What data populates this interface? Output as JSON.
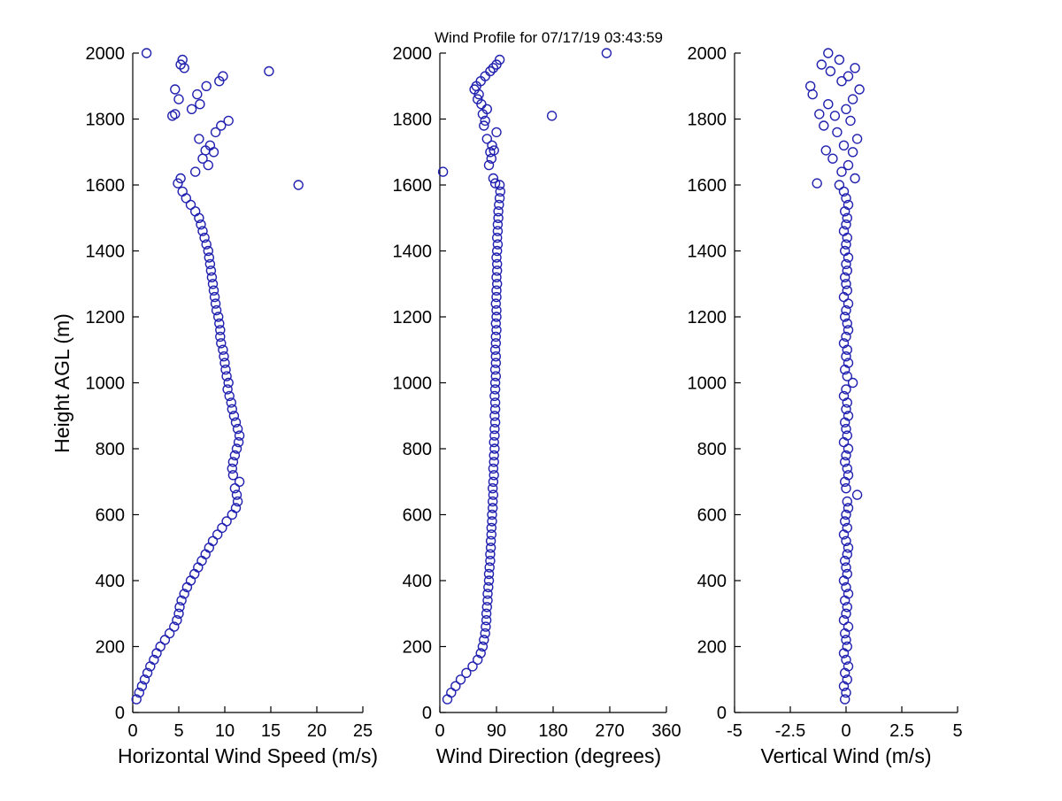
{
  "chart_data": {
    "type": "scatter",
    "title": "Wind Profile for  07/17/19 03:43:59",
    "ylabel": "Height AGL (m)",
    "ylim": [
      0,
      2000
    ],
    "yticks": [
      0,
      200,
      400,
      600,
      800,
      1000,
      1200,
      1400,
      1600,
      1800,
      2000
    ],
    "marker": {
      "shape": "open-circle",
      "color": "#2121b0",
      "radius": 5
    },
    "heights_m": [
      40,
      60,
      80,
      100,
      120,
      140,
      160,
      180,
      200,
      220,
      240,
      260,
      280,
      300,
      320,
      340,
      360,
      380,
      400,
      420,
      440,
      460,
      480,
      500,
      520,
      540,
      560,
      580,
      600,
      620,
      640,
      660,
      680,
      700,
      720,
      740,
      760,
      780,
      800,
      820,
      840,
      860,
      880,
      900,
      920,
      940,
      960,
      980,
      1000,
      1020,
      1040,
      1060,
      1080,
      1100,
      1120,
      1140,
      1160,
      1180,
      1200,
      1220,
      1240,
      1260,
      1280,
      1300,
      1320,
      1340,
      1360,
      1380,
      1400,
      1420,
      1440,
      1460,
      1480,
      1500,
      1520,
      1540,
      1560,
      1580,
      1600,
      1605,
      1620,
      1640,
      1660,
      1680,
      1700,
      1705,
      1720,
      1740,
      1760,
      1780,
      1795,
      1810,
      1815,
      1830,
      1845,
      1860,
      1875,
      1890,
      1900,
      1915,
      1930,
      1945,
      1955,
      1965,
      1980,
      2000
    ],
    "panels": [
      {
        "name": "horizontal-wind-speed",
        "xlabel": "Horizontal Wind Speed (m/s)",
        "xlim": [
          0,
          25
        ],
        "xticks": [
          0,
          5,
          10,
          15,
          20,
          25
        ],
        "values": [
          0.4,
          0.7,
          1.0,
          1.3,
          1.6,
          1.9,
          2.3,
          2.6,
          3.0,
          3.5,
          4.0,
          4.5,
          4.8,
          5.0,
          5.1,
          5.3,
          5.6,
          5.9,
          6.3,
          6.7,
          7.1,
          7.5,
          7.9,
          8.3,
          8.7,
          9.2,
          9.7,
          10.2,
          10.8,
          11.2,
          11.4,
          11.3,
          11.1,
          11.6,
          10.9,
          10.8,
          10.9,
          11.1,
          11.3,
          11.5,
          11.6,
          11.4,
          11.2,
          11.0,
          10.8,
          10.7,
          10.5,
          10.3,
          10.4,
          10.2,
          10.1,
          10.0,
          9.9,
          9.8,
          9.6,
          9.5,
          9.5,
          9.4,
          9.3,
          9.1,
          9.0,
          8.9,
          8.8,
          8.7,
          8.6,
          8.5,
          8.4,
          8.3,
          8.2,
          8.0,
          7.8,
          7.6,
          7.4,
          7.2,
          6.8,
          6.3,
          5.8,
          5.4,
          18.0,
          4.9,
          5.2,
          6.8,
          8.2,
          7.6,
          8.8,
          7.9,
          8.4,
          7.2,
          9.0,
          9.6,
          10.4,
          4.3,
          4.6,
          6.4,
          7.3,
          5.0,
          7.0,
          4.6,
          8.0,
          9.4,
          9.8,
          14.8,
          5.6,
          5.2,
          5.4,
          1.5
        ]
      },
      {
        "name": "wind-direction",
        "xlabel": "Wind Direction (degrees)",
        "xlim": [
          0,
          360
        ],
        "xticks": [
          0,
          90,
          180,
          270,
          360
        ],
        "values": [
          12,
          18,
          25,
          33,
          42,
          52,
          60,
          65,
          68,
          70,
          72,
          73,
          74,
          74,
          75,
          76,
          76,
          77,
          78,
          78,
          79,
          80,
          80,
          81,
          81,
          82,
          82,
          83,
          83,
          84,
          84,
          85,
          84,
          85,
          86,
          85,
          86,
          86,
          87,
          86,
          87,
          87,
          88,
          87,
          88,
          88,
          87,
          88,
          88,
          89,
          88,
          89,
          89,
          88,
          89,
          89,
          90,
          89,
          90,
          90,
          89,
          90,
          90,
          91,
          90,
          91,
          91,
          90,
          91,
          92,
          91,
          92,
          92,
          93,
          93,
          94,
          95,
          96,
          95,
          88,
          85,
          5,
          78,
          82,
          80,
          86,
          83,
          75,
          90,
          70,
          72,
          178,
          68,
          75,
          66,
          60,
          62,
          55,
          58,
          65,
          72,
          80,
          85,
          90,
          95,
          265
        ]
      },
      {
        "name": "vertical-wind",
        "xlabel": "Vertical Wind (m/s)",
        "xlim": [
          -5,
          5
        ],
        "xticks": [
          -5,
          -2.5,
          0,
          2.5,
          5
        ],
        "values": [
          -0.05,
          0.0,
          -0.1,
          0.05,
          -0.05,
          0.1,
          0.0,
          -0.1,
          0.05,
          0.0,
          -0.05,
          0.1,
          -0.1,
          0.0,
          0.05,
          -0.05,
          0.1,
          0.0,
          -0.1,
          0.05,
          0.0,
          -0.05,
          0.05,
          0.1,
          0.0,
          -0.1,
          0.05,
          -0.05,
          0.0,
          0.1,
          0.05,
          0.5,
          0.0,
          -0.05,
          0.1,
          0.05,
          -0.05,
          0.0,
          0.1,
          -0.1,
          0.05,
          0.0,
          -0.05,
          0.1,
          0.0,
          0.05,
          -0.1,
          0.0,
          0.3,
          0.05,
          -0.05,
          0.1,
          0.0,
          0.05,
          -0.1,
          0.0,
          0.1,
          0.05,
          -0.05,
          0.0,
          0.1,
          -0.1,
          0.05,
          0.0,
          -0.05,
          0.05,
          0.0,
          0.1,
          -0.05,
          0.0,
          0.05,
          -0.1,
          0.0,
          0.05,
          -0.05,
          0.1,
          0.0,
          -0.1,
          -0.3,
          -1.3,
          0.4,
          -0.2,
          0.1,
          -0.6,
          0.3,
          -0.9,
          -0.1,
          0.5,
          -0.4,
          -1.0,
          0.2,
          -0.5,
          -1.2,
          0.0,
          -0.8,
          0.3,
          -1.5,
          0.6,
          -1.6,
          -0.2,
          0.1,
          -0.7,
          0.4,
          -1.1,
          -0.3,
          -0.8
        ]
      }
    ]
  }
}
